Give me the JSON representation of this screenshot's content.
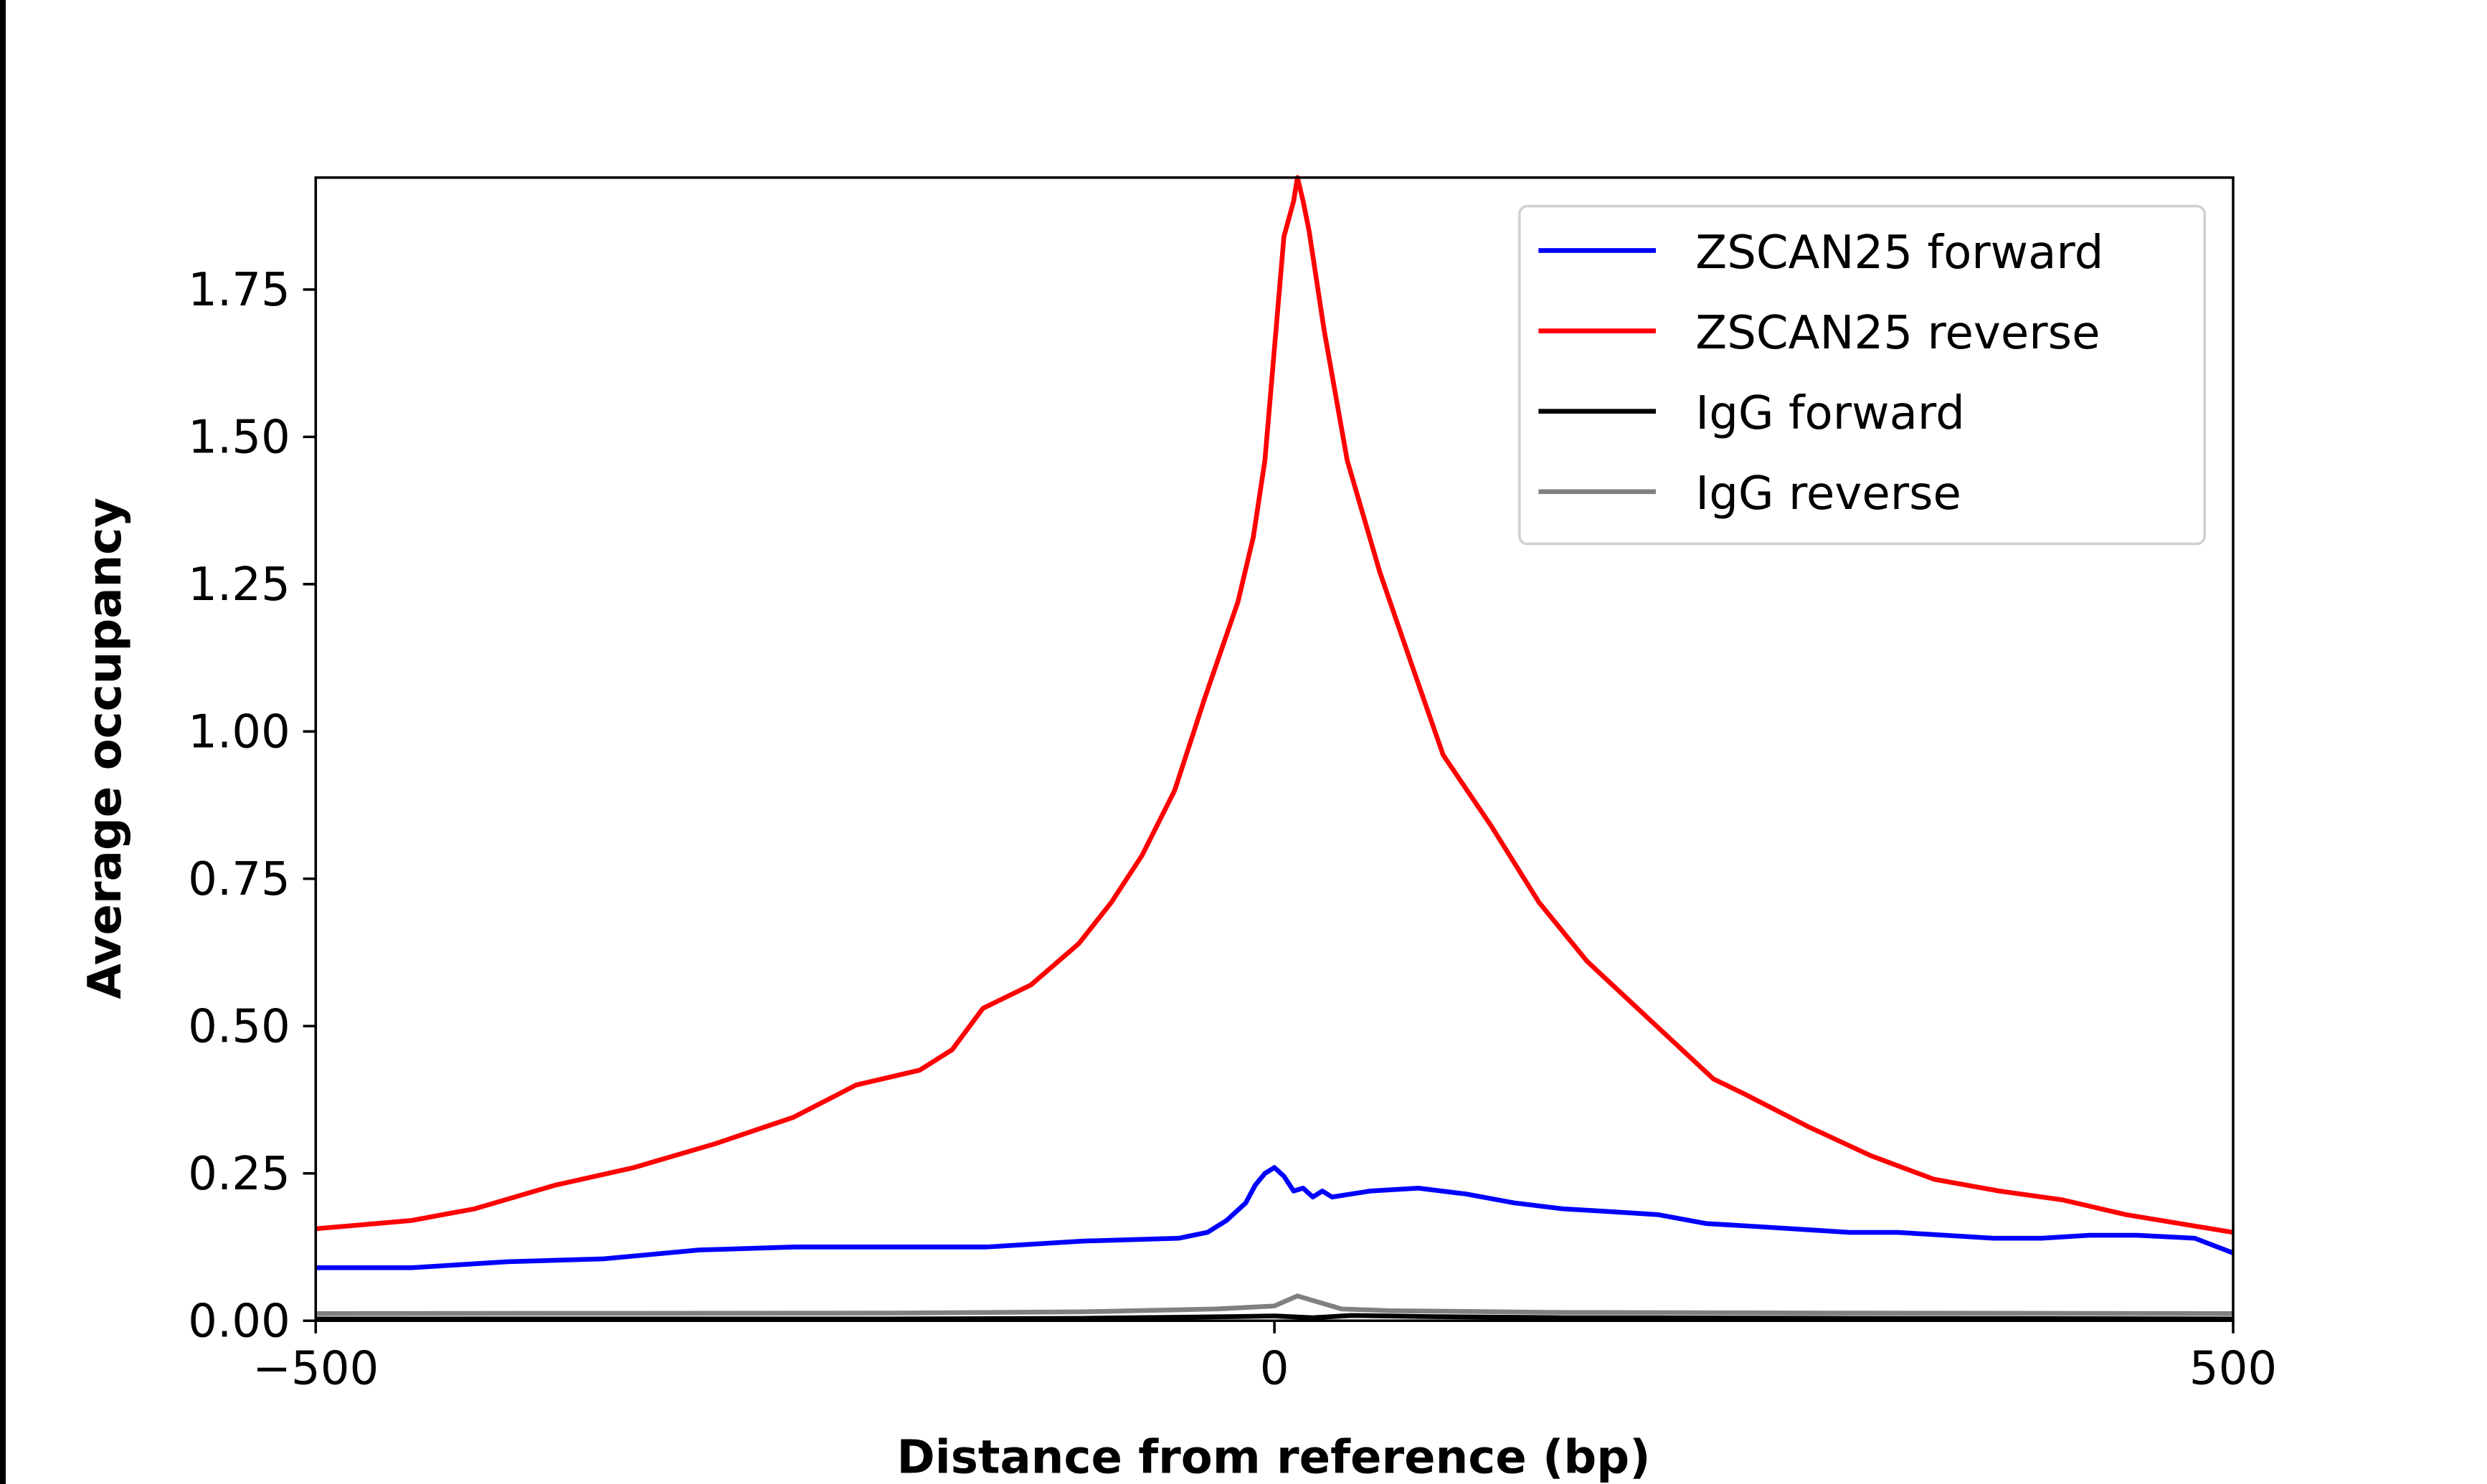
{
  "chart_data": {
    "type": "line",
    "title": "",
    "xlabel": "Distance from reference (bp)",
    "ylabel": "Average occupancy",
    "xlim": [
      -500,
      500
    ],
    "ylim": [
      0,
      1.94
    ],
    "xticks": [
      -500,
      0,
      500
    ],
    "xtick_labels": [
      "−500",
      "0",
      "500"
    ],
    "yticks": [
      0,
      0.25,
      0.5,
      0.75,
      1.0,
      1.25,
      1.5,
      1.75
    ],
    "ytick_labels": [
      "0.00",
      "0.25",
      "0.50",
      "0.75",
      "1.00",
      "1.25",
      "1.50",
      "1.75"
    ],
    "grid": false,
    "legend_position": "upper-right",
    "series": [
      {
        "name": "ZSCAN25 forward",
        "color": "#0000ff",
        "x": [
          -500,
          -450,
          -400,
          -350,
          -300,
          -250,
          -200,
          -150,
          -100,
          -50,
          -35,
          -25,
          -15,
          -10,
          -5,
          0,
          5,
          10,
          15,
          20,
          25,
          30,
          40,
          50,
          75,
          100,
          125,
          150,
          175,
          200,
          225,
          250,
          275,
          300,
          325,
          350,
          375,
          400,
          425,
          450,
          480,
          500
        ],
        "y": [
          0.09,
          0.09,
          0.1,
          0.105,
          0.12,
          0.125,
          0.125,
          0.125,
          0.135,
          0.14,
          0.15,
          0.17,
          0.2,
          0.23,
          0.25,
          0.26,
          0.245,
          0.22,
          0.225,
          0.21,
          0.22,
          0.21,
          0.215,
          0.22,
          0.225,
          0.215,
          0.2,
          0.19,
          0.185,
          0.18,
          0.165,
          0.16,
          0.155,
          0.15,
          0.15,
          0.145,
          0.14,
          0.14,
          0.145,
          0.145,
          0.14,
          0.115
        ]
      },
      {
        "name": "ZSCAN25 reverse",
        "color": "#ff0000",
        "x": [
          -500,
          -450,
          -417,
          -375,
          -334,
          -292,
          -251,
          -218,
          -185,
          -168,
          -152,
          -127,
          -102,
          -85,
          -69,
          -52,
          -36,
          -19,
          -11,
          -5,
          0,
          5,
          10,
          12,
          15,
          18,
          26,
          38,
          55,
          72,
          88,
          113,
          138,
          163,
          196,
          229,
          245,
          278,
          311,
          344,
          378,
          411,
          444,
          500
        ],
        "y": [
          0.156,
          0.17,
          0.19,
          0.23,
          0.26,
          0.3,
          0.345,
          0.4,
          0.425,
          0.46,
          0.53,
          0.57,
          0.64,
          0.71,
          0.79,
          0.9,
          1.06,
          1.22,
          1.33,
          1.46,
          1.65,
          1.84,
          1.9,
          1.94,
          1.9,
          1.85,
          1.68,
          1.46,
          1.27,
          1.11,
          0.96,
          0.84,
          0.71,
          0.61,
          0.51,
          0.41,
          0.385,
          0.33,
          0.28,
          0.24,
          0.22,
          0.205,
          0.18,
          0.15
        ]
      },
      {
        "name": "IgG forward",
        "color": "#000000",
        "x": [
          -500,
          -200,
          -100,
          -20,
          0,
          20,
          40,
          80,
          150,
          300,
          500
        ],
        "y": [
          0.003,
          0.003,
          0.004,
          0.007,
          0.008,
          0.005,
          0.009,
          0.007,
          0.005,
          0.004,
          0.003
        ]
      },
      {
        "name": "IgG reverse",
        "color": "#808080",
        "x": [
          -500,
          -200,
          -100,
          -30,
          0,
          12,
          35,
          60,
          150,
          300,
          500
        ],
        "y": [
          0.012,
          0.013,
          0.015,
          0.02,
          0.025,
          0.042,
          0.02,
          0.017,
          0.014,
          0.013,
          0.012
        ]
      }
    ]
  }
}
